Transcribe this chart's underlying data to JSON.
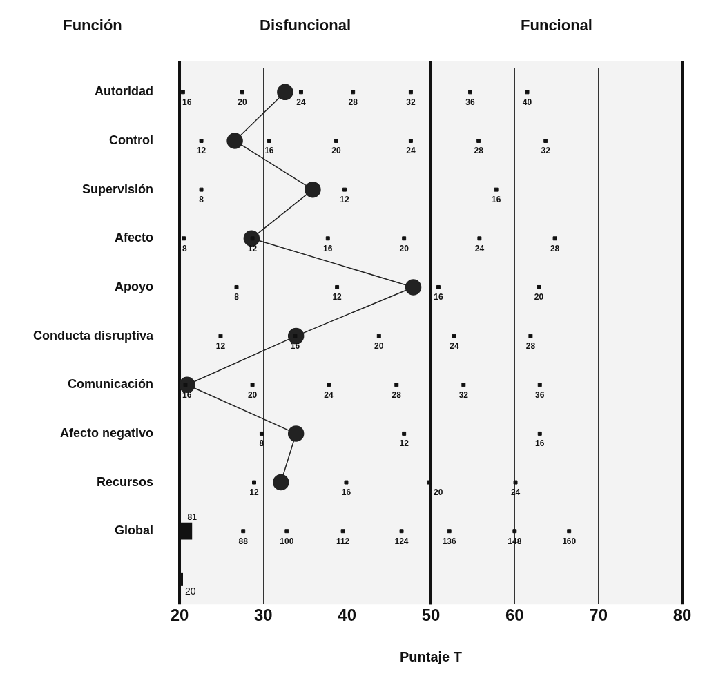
{
  "chart_data": {
    "type": "line",
    "orientation": "horizontal",
    "ylabel": "Función",
    "xlabel": "Puntaje T",
    "categories": [
      "Autoridad",
      "Control",
      "Supervisión",
      "Afecto",
      "Apoyo",
      "Conducta disruptiva",
      "Comunicación",
      "Afecto negativo",
      "Recursos",
      "Global",
      null
    ],
    "series": [
      {
        "color": "#222222",
        "values": [
          32.6,
          26.6,
          35.9,
          28.6,
          47.9,
          33.9,
          20.9,
          33.9,
          32.1,
          null,
          null
        ]
      },
      {
        "type": "bar",
        "color": "#111111",
        "values": [
          null,
          null,
          null,
          null,
          null,
          null,
          null,
          null,
          null,
          21.5,
          null
        ]
      },
      {
        "type": "scatter",
        "color": "#111111",
        "marker": "square",
        "x": [
          "Autoridad",
          "Autoridad",
          "Autoridad",
          "Autoridad",
          "Autoridad",
          "Autoridad",
          "Autoridad",
          "Control",
          "Control",
          "Control",
          "Control",
          "Control",
          "Control",
          "Supervisión",
          "Supervisión",
          "Supervisión",
          "Afecto",
          "Afecto",
          "Afecto",
          "Afecto",
          "Afecto",
          "Afecto",
          "Apoyo",
          "Apoyo",
          "Apoyo",
          "Apoyo",
          "Conducta disruptiva",
          "Conducta disruptiva",
          "Conducta disruptiva",
          "Conducta disruptiva",
          "Conducta disruptiva",
          "Comunicación",
          "Comunicación",
          "Comunicación",
          "Comunicación",
          "Comunicación",
          "Comunicación",
          "Afecto negativo",
          "Afecto negativo",
          "Afecto negativo",
          "Recursos",
          "Recursos",
          "Recursos",
          "Recursos",
          "Global",
          "Global",
          "Global",
          "Global",
          "Global",
          "Global",
          "Global"
        ],
        "values": [
          20.4,
          27.5,
          34.5,
          40.7,
          47.6,
          54.7,
          61.5,
          22.6,
          30.7,
          38.7,
          47.6,
          55.7,
          63.7,
          22.6,
          39.7,
          57.8,
          20.5,
          28.7,
          37.7,
          46.8,
          55.8,
          64.8,
          26.8,
          38.8,
          50.9,
          62.9,
          24.9,
          33.8,
          43.8,
          52.8,
          61.9,
          20.7,
          28.7,
          37.8,
          45.9,
          53.9,
          63.0,
          29.8,
          46.8,
          63.0,
          28.9,
          39.9,
          49.8,
          60.1,
          27.6,
          32.8,
          39.5,
          46.5,
          52.2,
          60.0,
          66.5
        ]
      }
    ],
    "marker": "circle",
    "line_style": "solid",
    "grid": "x",
    "xlim": [
      20,
      80
    ],
    "xticks": [
      20,
      30,
      40,
      50,
      60,
      70,
      80
    ],
    "bands": [
      {
        "axis": "x",
        "from": 20,
        "to": 50,
        "label": "Disfuncional",
        "color": "#f3f3f3"
      },
      {
        "axis": "x",
        "from": 50,
        "to": 80,
        "label": "Funcional",
        "color": "#f3f3f3"
      }
    ],
    "annotations": [
      {
        "text": "16",
        "x": 20.4,
        "y": "Autoridad"
      },
      {
        "text": "20",
        "x": 27.5,
        "y": "Autoridad"
      },
      {
        "text": "24",
        "x": 34.5,
        "y": "Autoridad"
      },
      {
        "text": "28",
        "x": 40.7,
        "y": "Autoridad"
      },
      {
        "text": "32",
        "x": 47.6,
        "y": "Autoridad"
      },
      {
        "text": "36",
        "x": 54.7,
        "y": "Autoridad"
      },
      {
        "text": "40",
        "x": 61.5,
        "y": "Autoridad"
      },
      {
        "text": "12",
        "x": 22.6,
        "y": "Control"
      },
      {
        "text": "16",
        "x": 30.7,
        "y": "Control"
      },
      {
        "text": "20",
        "x": 38.7,
        "y": "Control"
      },
      {
        "text": "24",
        "x": 47.6,
        "y": "Control"
      },
      {
        "text": "28",
        "x": 55.7,
        "y": "Control"
      },
      {
        "text": "32",
        "x": 63.7,
        "y": "Control"
      },
      {
        "text": "8",
        "x": 22.6,
        "y": "Supervisión"
      },
      {
        "text": "12",
        "x": 39.7,
        "y": "Supervisión"
      },
      {
        "text": "16",
        "x": 57.8,
        "y": "Supervisión"
      },
      {
        "text": "8",
        "x": 20.5,
        "y": "Afecto"
      },
      {
        "text": "12",
        "x": 28.7,
        "y": "Afecto"
      },
      {
        "text": "16",
        "x": 37.7,
        "y": "Afecto"
      },
      {
        "text": "20",
        "x": 46.8,
        "y": "Afecto"
      },
      {
        "text": "24",
        "x": 55.8,
        "y": "Afecto"
      },
      {
        "text": "28",
        "x": 64.8,
        "y": "Afecto"
      },
      {
        "text": "8",
        "x": 26.8,
        "y": "Apoyo"
      },
      {
        "text": "12",
        "x": 38.8,
        "y": "Apoyo"
      },
      {
        "text": "16",
        "x": 50.9,
        "y": "Apoyo"
      },
      {
        "text": "20",
        "x": 62.9,
        "y": "Apoyo"
      },
      {
        "text": "12",
        "x": 24.9,
        "y": "Conducta disruptiva"
      },
      {
        "text": "16",
        "x": 33.8,
        "y": "Conducta disruptiva"
      },
      {
        "text": "20",
        "x": 43.8,
        "y": "Conducta disruptiva"
      },
      {
        "text": "24",
        "x": 52.8,
        "y": "Conducta disruptiva"
      },
      {
        "text": "28",
        "x": 61.9,
        "y": "Conducta disruptiva"
      },
      {
        "text": "16",
        "x": 20.7,
        "y": "Comunicación"
      },
      {
        "text": "20",
        "x": 28.7,
        "y": "Comunicación"
      },
      {
        "text": "24",
        "x": 37.8,
        "y": "Comunicación"
      },
      {
        "text": "28",
        "x": 45.9,
        "y": "Comunicación"
      },
      {
        "text": "32",
        "x": 53.9,
        "y": "Comunicación"
      },
      {
        "text": "36",
        "x": 63.0,
        "y": "Comunicación"
      },
      {
        "text": "8",
        "x": 29.8,
        "y": "Afecto negativo"
      },
      {
        "text": "12",
        "x": 46.8,
        "y": "Afecto negativo"
      },
      {
        "text": "16",
        "x": 63.0,
        "y": "Afecto negativo"
      },
      {
        "text": "12",
        "x": 28.9,
        "y": "Recursos"
      },
      {
        "text": "16",
        "x": 39.9,
        "y": "Recursos"
      },
      {
        "text": "20",
        "x": 49.8,
        "y": "Recursos"
      },
      {
        "text": "24",
        "x": 60.1,
        "y": "Recursos"
      },
      {
        "text": "81",
        "x": 21.5,
        "y": "Global"
      },
      {
        "text": "88",
        "x": 27.6,
        "y": "Global"
      },
      {
        "text": "100",
        "x": 32.8,
        "y": "Global"
      },
      {
        "text": "112",
        "x": 39.5,
        "y": "Global"
      },
      {
        "text": "124",
        "x": 46.5,
        "y": "Global"
      },
      {
        "text": "136",
        "x": 52.2,
        "y": "Global"
      },
      {
        "text": "148",
        "x": 60.0,
        "y": "Global"
      },
      {
        "text": "160",
        "x": 66.5,
        "y": "Global"
      },
      "20"
    ]
  }
}
